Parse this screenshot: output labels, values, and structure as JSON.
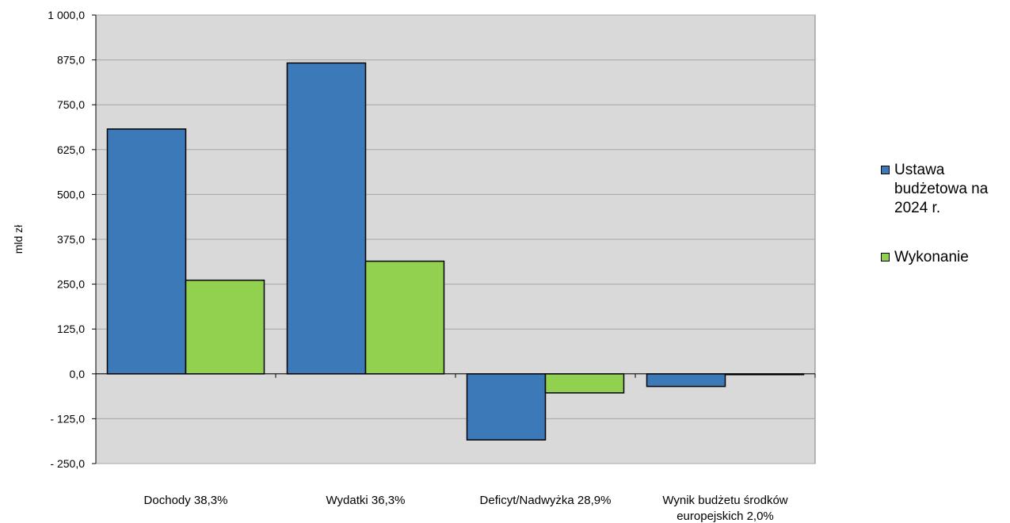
{
  "chart_data": {
    "type": "bar",
    "ylabel": "mld zł",
    "ylim": [
      -250,
      1000
    ],
    "ytick_step": 125,
    "grid": true,
    "legend_position": "right",
    "categories": [
      [
        "Dochody 38,3%"
      ],
      [
        "Wydatki 36,3%"
      ],
      [
        "Deficyt/Nadwyżka 28,9%"
      ],
      [
        "Wynik budżetu środków",
        "europejskich 2,0%"
      ]
    ],
    "series": [
      {
        "name": "Ustawa budżetowa na 2024 r.",
        "color": "#3B79B8",
        "values": [
          682.4,
          866.4,
          -184.0,
          -35.0
        ]
      },
      {
        "name": "Wykonanie",
        "color": "#92D050",
        "values": [
          261.0,
          314.0,
          -53.0,
          -0.7
        ]
      }
    ],
    "ytick_labels": [
      "- 250,0",
      "- 125,0",
      "0,0",
      "125,0",
      "250,0",
      "375,0",
      "500,0",
      "625,0",
      "750,0",
      "875,0",
      "1 000,0"
    ],
    "plot_background": "#D9D9D9"
  }
}
